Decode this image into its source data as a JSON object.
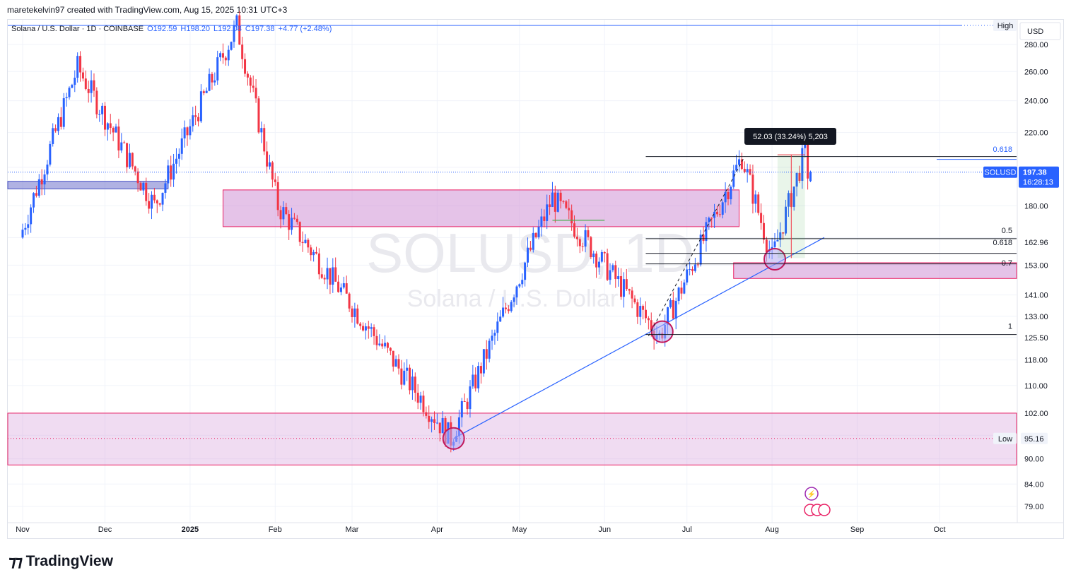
{
  "header": {
    "author_line": "maretekelvin97 created with TradingView.com, Aug 15, 2025 10:31 UTC+3"
  },
  "symbol": {
    "name": "Solana / U.S. Dollar · 1D · COINBASE",
    "open": "O192.59",
    "high": "H198.20",
    "low": "L192.08",
    "close": "C197.38",
    "change": "+4.77 (+2.48%)"
  },
  "watermark": {
    "ticker": "SOLUSD, 1D",
    "name": "Solana / U.S. Dollar"
  },
  "currency": "USD",
  "price_tag": {
    "symbol": "SOLUSD",
    "price": "197.38",
    "countdown": "16:28:13"
  },
  "markers": {
    "high_label": "High",
    "low_label": "Low",
    "low_value": "95.16"
  },
  "measure_label": "52.03 (33.24%) 5,203",
  "fib_labels": [
    {
      "text": "0.618",
      "price": 162.96
    },
    {
      "text": "0.5",
      "price": 167.5
    },
    {
      "text": "0.7",
      "price": 154.0
    },
    {
      "text": "1",
      "price": 129.5
    },
    {
      "text": "0.618",
      "price": 206.5
    }
  ],
  "brand": {
    "wordmark": "TradingView"
  },
  "colors": {
    "up": "#2962ff",
    "down": "#f23645",
    "zone": "#d39bd9",
    "zone_border": "#e91e63",
    "trendline": "#2962ff",
    "axis_text": "#131722",
    "tag_bg": "#2962ff"
  },
  "chart_data": {
    "type": "candlestick",
    "title": "Solana / U.S. Dollar · 1D · COINBASE",
    "y_axis": {
      "scale": "log",
      "ticks": [
        280,
        260,
        240,
        220,
        200,
        180,
        165,
        153,
        141,
        133,
        125.5,
        118,
        110,
        102,
        96,
        90,
        84,
        79
      ]
    },
    "y_axis_visible_labels": [
      "280.00",
      "260.00",
      "240.00",
      "220.00",
      "180.00",
      "162.96",
      "153.00",
      "141.00",
      "133.00",
      "125.50",
      "118.00",
      "110.00",
      "102.00",
      "95.16",
      "90.00",
      "84.00",
      "79.00"
    ],
    "x_axis": {
      "labels": [
        "Nov",
        "Dec",
        "2025",
        "Feb",
        "Mar",
        "Apr",
        "May",
        "Jun",
        "Jul",
        "Aug",
        "Sep",
        "Oct"
      ]
    },
    "swing_points": [
      {
        "date": "2024-11-01",
        "price": 165
      },
      {
        "date": "2024-11-22",
        "price": 263
      },
      {
        "date": "2024-12-20",
        "price": 180
      },
      {
        "date": "2025-01-19",
        "price": 295
      },
      {
        "date": "2025-02-03",
        "price": 180
      },
      {
        "date": "2025-03-11",
        "price": 125
      },
      {
        "date": "2025-04-07",
        "price": 95.16
      },
      {
        "date": "2025-05-14",
        "price": 184
      },
      {
        "date": "2025-06-22",
        "price": 126
      },
      {
        "date": "2025-07-22",
        "price": 206
      },
      {
        "date": "2025-08-02",
        "price": 156
      },
      {
        "date": "2025-08-14",
        "price": 209
      },
      {
        "date": "2025-08-15",
        "price": 197.38
      }
    ],
    "last": {
      "open": 192.59,
      "high": 198.2,
      "low": 192.08,
      "close": 197.38
    },
    "zones": [
      {
        "from": "2024-10-25",
        "to": "2024-12-24",
        "top": 192.5,
        "bottom": 188.5
      },
      {
        "from": "2025-01-13",
        "to": "2025-07-20",
        "top": 188.0,
        "bottom": 170.0
      },
      {
        "from": "2025-07-18",
        "to": "2025-10-31",
        "top": 154.0,
        "bottom": 147.5
      },
      {
        "from": "2024-10-25",
        "to": "2025-10-31",
        "top": 102.0,
        "bottom": 88.5
      }
    ],
    "fib": {
      "high": 206,
      "low": 126
    }
  }
}
